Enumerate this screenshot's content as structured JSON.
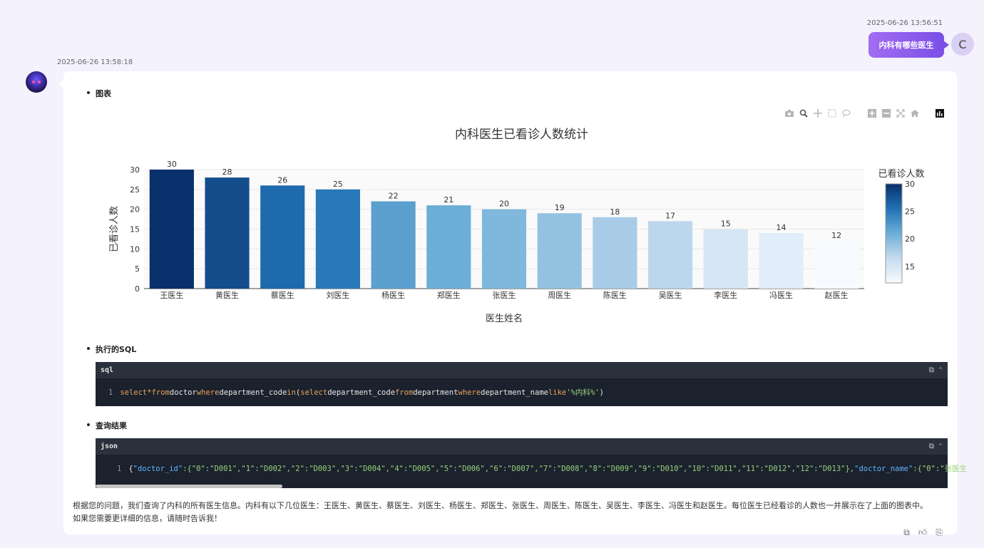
{
  "user_message": {
    "timestamp": "2025-06-26 13:56:51",
    "text": "内科有哪些医生",
    "avatar_letter": "C"
  },
  "bot_message": {
    "timestamp": "2025-06-26 13:58:18",
    "sections": {
      "chart_title_label": "图表",
      "sql_title": "执行的SQL",
      "result_title": "查询结果"
    },
    "sql_block": {
      "lang": "sql",
      "line_number": "1",
      "tokens": {
        "t1": "select",
        "t2": " * ",
        "t3": "from",
        "t4": " doctor ",
        "t5": "where",
        "t6": " department_code ",
        "t7": "in",
        "t8": " (",
        "t9": "select",
        "t10": " department_code ",
        "t11": "from",
        "t12": " department ",
        "t13": "where",
        "t14": " department_name ",
        "t15": "like",
        "t16": " ",
        "t17": "'%内科%'",
        "t18": ")"
      }
    },
    "json_block": {
      "lang": "json",
      "line_number": "1",
      "content_prefix": "{",
      "key1": "\"doctor_id\"",
      "content1": ":{\"0\":\"D001\",\"1\":\"D002\",\"2\":\"D003\",\"3\":\"D004\",\"4\":\"D005\",\"5\":\"D006\",\"6\":\"D007\",\"7\":\"D008\",\"8\":\"D009\",\"9\":\"D010\",\"10\":\"D011\",\"11\":\"D012\",\"12\":\"D013\"},",
      "key2": "\"doctor_name\"",
      "content2": ":{\"0\":\"张医生"
    },
    "summary_line1": "根据您的问题，我们查询了内科的所有医生信息。内科有以下几位医生：王医生、黄医生、蔡医生、刘医生、杨医生、郑医生、张医生、周医生、陈医生、吴医生、李医生、冯医生和赵医生。每位医生已经看诊的人数也一并展示在了上面的图表中。",
    "summary_line2": "如果您需要更详细的信息，请随时告诉我！"
  },
  "chart_data": {
    "type": "bar",
    "title": "内科医生已看诊人数统计",
    "xlabel": "医生姓名",
    "ylabel": "已看诊人数",
    "categories": [
      "王医生",
      "黄医生",
      "蔡医生",
      "刘医生",
      "杨医生",
      "郑医生",
      "张医生",
      "周医生",
      "陈医生",
      "吴医生",
      "李医生",
      "冯医生",
      "赵医生"
    ],
    "values": [
      30,
      28,
      26,
      25,
      22,
      21,
      20,
      19,
      18,
      17,
      15,
      14,
      12
    ],
    "ylim": [
      0,
      30
    ],
    "yticks": [
      0,
      5,
      10,
      15,
      20,
      25,
      30
    ],
    "grid": true,
    "colorbar": {
      "title": "已看诊人数",
      "ticks": [
        15,
        20,
        25,
        30
      ],
      "range": [
        12,
        30
      ],
      "colorscale": [
        "#f7fbff",
        "#c6dbef",
        "#6baed6",
        "#2171b5",
        "#08306b"
      ]
    }
  }
}
